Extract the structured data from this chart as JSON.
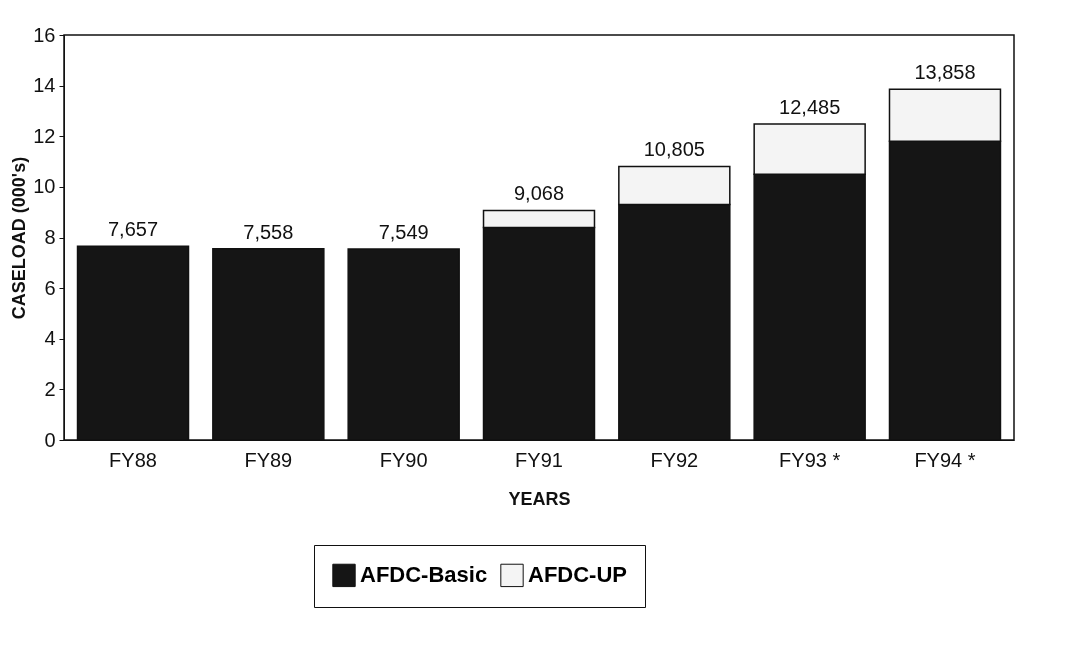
{
  "chart_data": {
    "type": "bar",
    "stacked": true,
    "xlabel": "YEARS",
    "ylabel": "CASELOAD (000's)",
    "categories": [
      "FY88",
      "FY89",
      "FY90",
      "FY91",
      "FY92",
      "FY93 *",
      "FY94 *"
    ],
    "series": [
      {
        "name": "AFDC-Basic",
        "color": "#151515",
        "values": [
          7.657,
          7.558,
          7.549,
          8.4,
          9.3,
          10.5,
          11.8
        ]
      },
      {
        "name": "AFDC-UP",
        "color": "#f4f4f4",
        "values": [
          null,
          null,
          null,
          0.668,
          1.505,
          1.985,
          2.058
        ]
      }
    ],
    "totals": [
      "7,657",
      "7,558",
      "7,549",
      "9,068",
      "10,805",
      "12,485",
      "13,858"
    ],
    "ylim": [
      0,
      16
    ],
    "yticks": [
      0,
      2,
      4,
      6,
      8,
      10,
      12,
      14,
      16
    ],
    "grid": false,
    "legend": "bottom"
  }
}
